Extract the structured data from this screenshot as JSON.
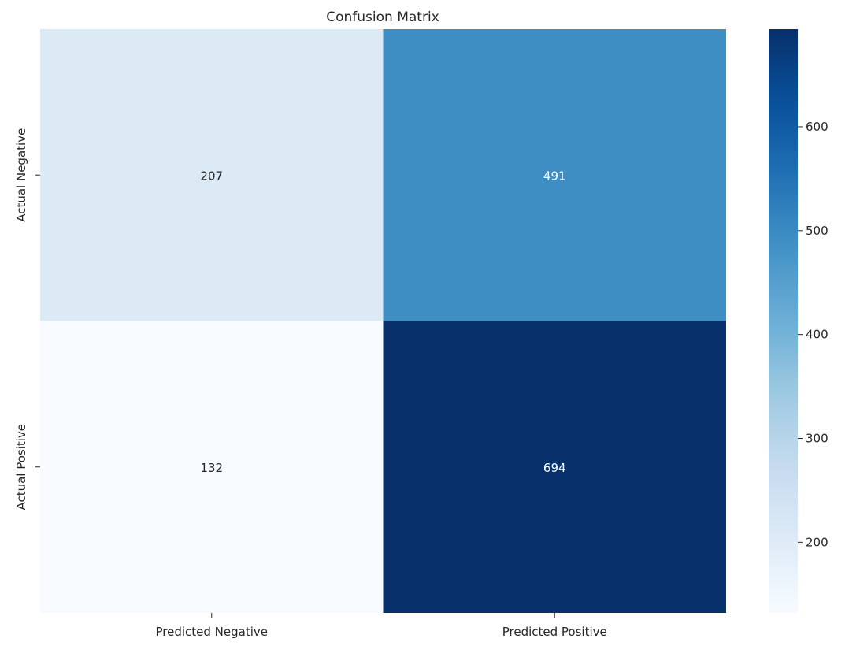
{
  "chart_data": {
    "type": "heatmap",
    "title": "Confusion Matrix",
    "x_categories": [
      "Predicted Negative",
      "Predicted Positive"
    ],
    "y_categories": [
      "Actual Negative",
      "Actual Positive"
    ],
    "values": [
      [
        207,
        491
      ],
      [
        132,
        694
      ]
    ],
    "colorscale": "Blues",
    "color_range": [
      132,
      694
    ],
    "colorbar_ticks": [
      200,
      300,
      400,
      500,
      600
    ],
    "annotate": true
  }
}
